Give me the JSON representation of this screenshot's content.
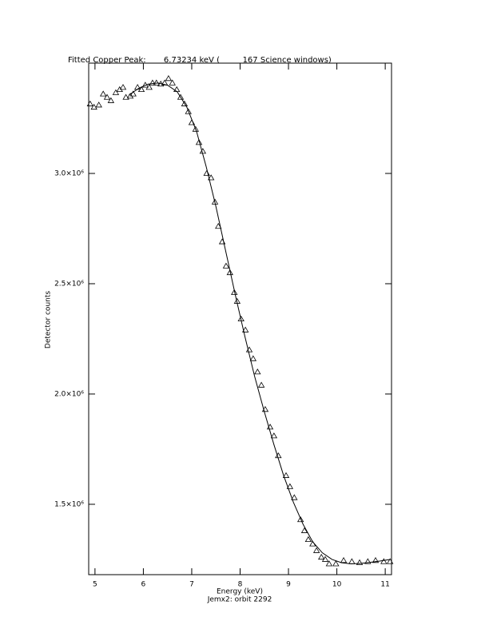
{
  "chart_data": {
    "type": "scatter",
    "title": "Fitted Copper Peak:       6.73234 keV (         167 Science windows)",
    "x_label": "Energy (keV)",
    "subtitle": "Jemx2: orbit 2292",
    "y_label": "Detector counts",
    "xlim": [
      4.87,
      11.13
    ],
    "ylim": [
      1181000,
      3500000
    ],
    "xticks": [
      5,
      6,
      7,
      8,
      9,
      10,
      11
    ],
    "yticks": [
      {
        "value": 1500000,
        "label": "1.5×10⁶"
      },
      {
        "value": 2000000,
        "label": "2.0×10⁶"
      },
      {
        "value": 2500000,
        "label": "2.5×10⁶"
      },
      {
        "value": 3000000,
        "label": "3.0×10⁶"
      }
    ],
    "series": [
      {
        "type": "scatter",
        "color": "#000000",
        "x": [
          4.9,
          4.98,
          5.08,
          5.17,
          5.25,
          5.33,
          5.43,
          5.51,
          5.58,
          5.64,
          5.73,
          5.79,
          5.88,
          5.96,
          6.04,
          6.12,
          6.19,
          6.27,
          6.36,
          6.44,
          6.52,
          6.6,
          6.69,
          6.77,
          6.85,
          6.93,
          7.0,
          7.08,
          7.15,
          7.23,
          7.31,
          7.4,
          7.48,
          7.55,
          7.63,
          7.71,
          7.79,
          7.88,
          7.94,
          8.02,
          8.11,
          8.19,
          8.27,
          8.36,
          8.44,
          8.52,
          8.62,
          8.7,
          8.79,
          8.95,
          9.03,
          9.12,
          9.25,
          9.33,
          9.41,
          9.5,
          9.58,
          9.68,
          9.76,
          9.84,
          9.98,
          10.14,
          10.31,
          10.47,
          10.64,
          10.8,
          10.97,
          11.1
        ],
        "values": [
          3315000,
          3300000,
          3310000,
          3360000,
          3345000,
          3330000,
          3366000,
          3380000,
          3390000,
          3345000,
          3350000,
          3360000,
          3390000,
          3380000,
          3400000,
          3390000,
          3410000,
          3410000,
          3405000,
          3410000,
          3430000,
          3410000,
          3380000,
          3345000,
          3315000,
          3280000,
          3230000,
          3200000,
          3140000,
          3100000,
          3000000,
          2980000,
          2870000,
          2760000,
          2690000,
          2580000,
          2550000,
          2460000,
          2420000,
          2340000,
          2290000,
          2200000,
          2160000,
          2100000,
          2040000,
          1930000,
          1850000,
          1810000,
          1720000,
          1630000,
          1580000,
          1530000,
          1430000,
          1380000,
          1340000,
          1320000,
          1290000,
          1260000,
          1250000,
          1230000,
          1230000,
          1245000,
          1240000,
          1235000,
          1240000,
          1245000,
          1240000,
          1240000
        ]
      },
      {
        "type": "line",
        "color": "#000000",
        "x": [
          5.7,
          5.9,
          6.1,
          6.3,
          6.5,
          6.7,
          6.9,
          7.1,
          7.3,
          7.5,
          7.7,
          7.9,
          8.1,
          8.3,
          8.5,
          8.7,
          8.9,
          9.1,
          9.3,
          9.5,
          9.7,
          9.9,
          10.1,
          10.3,
          10.5,
          10.7,
          10.9,
          11.1
        ],
        "values": [
          3355000,
          3385000,
          3405000,
          3410000,
          3400000,
          3370000,
          3300000,
          3190000,
          3030000,
          2850000,
          2650000,
          2450000,
          2260000,
          2080000,
          1920000,
          1770000,
          1630000,
          1510000,
          1410000,
          1330000,
          1280000,
          1250000,
          1235000,
          1230000,
          1232000,
          1237000,
          1243000,
          1250000
        ]
      }
    ]
  }
}
